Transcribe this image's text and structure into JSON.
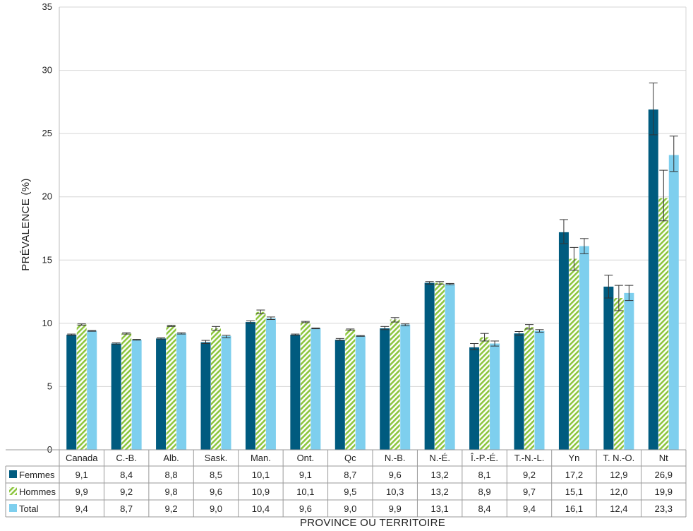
{
  "chart_data": {
    "type": "bar",
    "xlabel": "PROVINCE OU TERRITOIRE",
    "ylabel": "PRÉVALENCE (%)",
    "ylim": [
      0,
      35
    ],
    "yticks": [
      "0",
      "5",
      "10",
      "15",
      "20",
      "25",
      "30",
      "35"
    ],
    "grid": true,
    "categories": [
      "Canada",
      "C.-B.",
      "Alb.",
      "Sask.",
      "Man.",
      "Ont.",
      "Qc",
      "N.-B.",
      "N.-É.",
      "Î.-P.-É.",
      "T.-N.-L.",
      "Yn",
      "T. N.-O.",
      "Nt"
    ],
    "series": [
      {
        "name": "Femmes",
        "color": "#005b7f",
        "pattern": "solid",
        "values": [
          9.1,
          8.4,
          8.8,
          8.5,
          10.1,
          9.1,
          8.7,
          9.6,
          13.2,
          8.1,
          9.2,
          17.2,
          12.9,
          26.9
        ],
        "labels": [
          "9,1",
          "8,4",
          "8,8",
          "8,5",
          "10,1",
          "9,1",
          "8,7",
          "9,6",
          "13,2",
          "8,1",
          "9,2",
          "17,2",
          "12,9",
          "26,9"
        ],
        "err_low": [
          9.05,
          8.35,
          8.75,
          8.4,
          10.0,
          9.05,
          8.65,
          9.5,
          13.1,
          7.9,
          9.05,
          16.3,
          12.0,
          24.9
        ],
        "err_high": [
          9.15,
          8.45,
          8.85,
          8.65,
          10.2,
          9.15,
          8.8,
          9.75,
          13.3,
          8.4,
          9.35,
          18.2,
          13.8,
          29.0
        ]
      },
      {
        "name": "Hommes",
        "color": "#8dc63f",
        "pattern": "hatched",
        "values": [
          9.9,
          9.2,
          9.8,
          9.6,
          10.9,
          10.1,
          9.5,
          10.3,
          13.2,
          8.9,
          9.7,
          15.1,
          12.0,
          19.9
        ],
        "labels": [
          "9,9",
          "9,2",
          "9,8",
          "9,6",
          "10,9",
          "10,1",
          "9,5",
          "10,3",
          "13,2",
          "8,9",
          "9,7",
          "15,1",
          "12,0",
          "19,9"
        ],
        "err_low": [
          9.85,
          9.15,
          9.75,
          9.45,
          10.75,
          10.05,
          9.45,
          10.1,
          13.1,
          8.6,
          9.55,
          14.2,
          11.0,
          18.1
        ],
        "err_high": [
          9.95,
          9.25,
          9.85,
          9.75,
          11.05,
          10.15,
          9.55,
          10.45,
          13.3,
          9.2,
          9.9,
          16.0,
          13.0,
          22.1
        ]
      },
      {
        "name": "Total",
        "color": "#7ecfee",
        "pattern": "solid",
        "values": [
          9.4,
          8.7,
          9.2,
          9.0,
          10.4,
          9.6,
          9.0,
          9.9,
          13.1,
          8.4,
          9.4,
          16.1,
          12.4,
          23.3
        ],
        "labels": [
          "9,4",
          "8,7",
          "9,2",
          "9,0",
          "10,4",
          "9,6",
          "9,0",
          "9,9",
          "13,1",
          "8,4",
          "9,4",
          "16,1",
          "12,4",
          "23,3"
        ],
        "err_low": [
          9.37,
          8.67,
          9.15,
          8.85,
          10.3,
          9.57,
          8.97,
          9.8,
          13.05,
          8.2,
          9.3,
          15.5,
          11.8,
          22.0
        ],
        "err_high": [
          9.43,
          8.73,
          9.25,
          9.05,
          10.5,
          9.63,
          9.03,
          9.95,
          13.15,
          8.6,
          9.5,
          16.7,
          13.0,
          24.8
        ]
      }
    ]
  }
}
